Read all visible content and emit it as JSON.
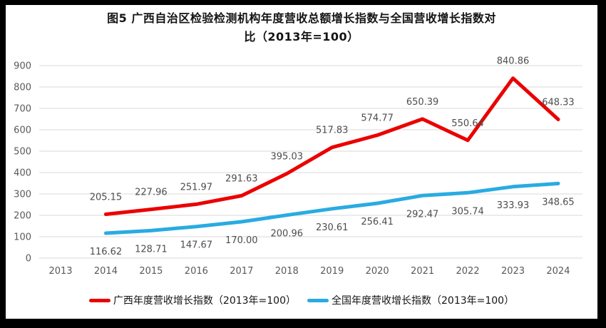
{
  "frame": {
    "border_color": "#000000",
    "panel_background": "#ffffff"
  },
  "chart_data": {
    "type": "line",
    "title": "图5  广西自治区检验检测机构年度营收总额增长指数与全国营收增长指数对比（2013年=100）",
    "title_lines": [
      "图5  广西自治区检验检测机构年度营收总额增长指数与全国营收增长指数对",
      "比（2013年=100）"
    ],
    "categories": [
      "2013",
      "2014",
      "2015",
      "2016",
      "2017",
      "2018",
      "2019",
      "2020",
      "2021",
      "2022",
      "2023",
      "2024"
    ],
    "series": [
      {
        "name": "广西年度营收增长指数（2013年=100）",
        "color": "#eb0000",
        "label_position": "above",
        "values": [
          null,
          205.15,
          227.96,
          251.97,
          291.63,
          395.03,
          517.83,
          574.77,
          650.39,
          550.64,
          840.86,
          648.33
        ]
      },
      {
        "name": "全国年度营收增长指数（2013年=100）",
        "color": "#29abe2",
        "label_position": "below",
        "values": [
          null,
          116.62,
          128.71,
          147.67,
          170.0,
          200.96,
          230.61,
          256.41,
          292.47,
          305.74,
          333.93,
          348.65
        ]
      }
    ],
    "yticks": [
      0,
      100,
      200,
      300,
      400,
      500,
      600,
      700,
      800,
      900
    ],
    "ylim": [
      0,
      900
    ],
    "ytick_interval": 100,
    "value_decimals": 2,
    "grid": true,
    "gridline_color": "#d9d9d9",
    "tick_color": "#595959",
    "data_label_color": "#4d4d4d",
    "legend_position": "bottom"
  }
}
